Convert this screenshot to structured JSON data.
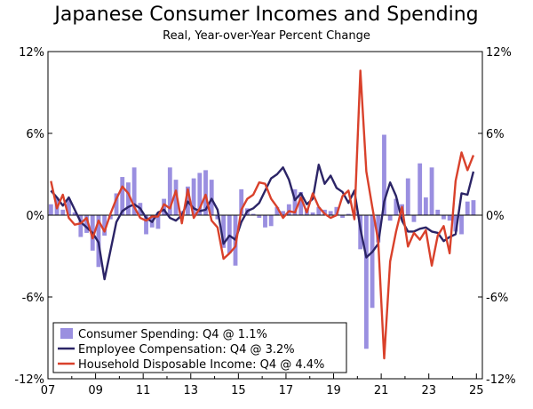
{
  "chart_data": {
    "type": "bar+line",
    "title": "Japanese Consumer Incomes and Spending",
    "subtitle": "Real, Year-over-Year Percent Change",
    "xlabel": "",
    "ylabel": "",
    "ylim": [
      -12,
      12
    ],
    "y_ticks": [
      "12%",
      "6%",
      "0%",
      "-6%",
      "-12%"
    ],
    "y_tick_values": [
      12,
      6,
      0,
      -6,
      -12
    ],
    "x_tick_labels": [
      "07",
      "09",
      "11",
      "13",
      "15",
      "17",
      "19",
      "21",
      "23",
      "25"
    ],
    "x_tick_values": [
      2007,
      2009,
      2011,
      2013,
      2015,
      2017,
      2019,
      2021,
      2023,
      2025
    ],
    "xlim": [
      2007,
      2025.25
    ],
    "grid": false,
    "legend_position": "bottom-left",
    "colors": {
      "bars": "#9a8fe0",
      "employee": "#2b2466",
      "household": "#d9412b"
    },
    "series": [
      {
        "name": "Consumer Spending: Q4 @ 1.1%",
        "type": "bar",
        "x": [
          2007.0,
          2007.25,
          2007.5,
          2007.75,
          2008.0,
          2008.25,
          2008.5,
          2008.75,
          2009.0,
          2009.25,
          2009.5,
          2009.75,
          2010.0,
          2010.25,
          2010.5,
          2010.75,
          2011.0,
          2011.25,
          2011.5,
          2011.75,
          2012.0,
          2012.25,
          2012.5,
          2012.75,
          2013.0,
          2013.25,
          2013.5,
          2013.75,
          2014.0,
          2014.25,
          2014.5,
          2014.75,
          2015.0,
          2015.25,
          2015.5,
          2015.75,
          2016.0,
          2016.25,
          2016.5,
          2016.75,
          2017.0,
          2017.25,
          2017.5,
          2017.75,
          2018.0,
          2018.25,
          2018.5,
          2018.75,
          2019.0,
          2019.25,
          2019.5,
          2019.75,
          2020.0,
          2020.25,
          2020.5,
          2020.75,
          2021.0,
          2021.25,
          2021.5,
          2021.75,
          2022.0,
          2022.25,
          2022.5,
          2022.75,
          2023.0,
          2023.25,
          2023.5,
          2023.75,
          2024.0,
          2024.25,
          2024.5,
          2024.75
        ],
        "values": [
          0.8,
          1.3,
          0.4,
          1.2,
          0.2,
          -1.6,
          -1.3,
          -2.6,
          -3.8,
          -1.5,
          -0.3,
          1.6,
          2.8,
          2.4,
          3.5,
          0.9,
          -1.4,
          -0.9,
          -1.0,
          1.2,
          3.5,
          2.6,
          0.3,
          2.1,
          2.7,
          3.1,
          3.3,
          2.6,
          -0.3,
          -2.4,
          -2.8,
          -3.7,
          1.9,
          0.5,
          0.1,
          -0.2,
          -0.9,
          -0.8,
          0.6,
          0.3,
          0.8,
          1.9,
          1.7,
          0.5,
          0.2,
          0.6,
          0.4,
          0.3,
          0.6,
          -0.2,
          0.1,
          0.2,
          -2.5,
          -9.8,
          -6.8,
          -2.0,
          5.9,
          -0.4,
          1.2,
          0.8,
          2.7,
          -0.5,
          3.8,
          1.3,
          3.5,
          0.4,
          -0.3,
          -0.4,
          -1.2,
          -1.4,
          1.0,
          1.1
        ]
      },
      {
        "name": "Employee Compensation: Q4 @ 3.2%",
        "type": "line",
        "x": [
          2007.0,
          2007.25,
          2007.5,
          2007.75,
          2008.0,
          2008.25,
          2008.5,
          2008.75,
          2009.0,
          2009.25,
          2009.5,
          2009.75,
          2010.0,
          2010.25,
          2010.5,
          2010.75,
          2011.0,
          2011.25,
          2011.5,
          2011.75,
          2012.0,
          2012.25,
          2012.5,
          2012.75,
          2013.0,
          2013.25,
          2013.5,
          2013.75,
          2014.0,
          2014.25,
          2014.5,
          2014.75,
          2015.0,
          2015.25,
          2015.5,
          2015.75,
          2016.0,
          2016.25,
          2016.5,
          2016.75,
          2017.0,
          2017.25,
          2017.5,
          2017.75,
          2018.0,
          2018.25,
          2018.5,
          2018.75,
          2019.0,
          2019.25,
          2019.5,
          2019.75,
          2020.0,
          2020.25,
          2020.5,
          2020.75,
          2021.0,
          2021.25,
          2021.5,
          2021.75,
          2022.0,
          2022.25,
          2022.5,
          2022.75,
          2023.0,
          2023.25,
          2023.5,
          2023.75,
          2024.0,
          2024.25,
          2024.5,
          2024.75
        ],
        "values": [
          1.8,
          1.3,
          0.7,
          1.3,
          0.4,
          -0.5,
          -0.9,
          -1.3,
          -2.0,
          -4.7,
          -2.6,
          -0.5,
          0.3,
          0.6,
          0.8,
          0.5,
          -0.2,
          -0.5,
          0.2,
          0.4,
          -0.2,
          -0.4,
          0.0,
          1.0,
          0.5,
          0.3,
          0.4,
          1.2,
          0.4,
          -2.1,
          -1.5,
          -1.8,
          -0.5,
          0.3,
          0.5,
          0.9,
          1.8,
          2.7,
          3.0,
          3.5,
          2.6,
          1.1,
          1.6,
          0.8,
          1.2,
          3.7,
          2.3,
          2.9,
          2.0,
          1.7,
          0.9,
          1.8,
          -1.0,
          -3.1,
          -2.7,
          -2.1,
          1.0,
          2.4,
          1.4,
          -0.4,
          -1.2,
          -1.2,
          -1.0,
          -0.9,
          -1.2,
          -1.3,
          -1.9,
          -1.6,
          -1.4,
          1.6,
          1.5,
          3.2
        ]
      },
      {
        "name": "Household Disposable Income: Q4 @ 4.4%",
        "type": "line",
        "x": [
          2007.0,
          2007.25,
          2007.5,
          2007.75,
          2008.0,
          2008.25,
          2008.5,
          2008.75,
          2009.0,
          2009.25,
          2009.5,
          2009.75,
          2010.0,
          2010.25,
          2010.5,
          2010.75,
          2011.0,
          2011.25,
          2011.5,
          2011.75,
          2012.0,
          2012.25,
          2012.5,
          2012.75,
          2013.0,
          2013.25,
          2013.5,
          2013.75,
          2014.0,
          2014.25,
          2014.5,
          2014.75,
          2015.0,
          2015.25,
          2015.5,
          2015.75,
          2016.0,
          2016.25,
          2016.5,
          2016.75,
          2017.0,
          2017.25,
          2017.5,
          2017.75,
          2018.0,
          2018.25,
          2018.5,
          2018.75,
          2019.0,
          2019.25,
          2019.5,
          2019.75,
          2020.0,
          2020.25,
          2020.5,
          2020.75,
          2021.0,
          2021.25,
          2021.5,
          2021.75,
          2022.0,
          2022.25,
          2022.5,
          2022.75,
          2023.0,
          2023.25,
          2023.5,
          2023.75,
          2024.0,
          2024.25,
          2024.5,
          2024.75
        ],
        "values": [
          2.5,
          0.5,
          1.5,
          -0.2,
          -0.7,
          -0.6,
          -0.2,
          -1.7,
          -0.4,
          -1.2,
          0.1,
          1.2,
          2.1,
          1.6,
          0.6,
          -0.2,
          -0.4,
          -0.1,
          -0.1,
          0.8,
          0.5,
          1.8,
          -0.6,
          1.9,
          -0.2,
          0.5,
          1.5,
          -0.4,
          -0.9,
          -3.2,
          -2.8,
          -2.3,
          0.4,
          1.2,
          1.5,
          2.4,
          2.3,
          1.2,
          0.6,
          -0.2,
          0.3,
          0.2,
          1.3,
          0.2,
          1.6,
          0.6,
          0.1,
          -0.2,
          0.0,
          1.4,
          1.8,
          -0.3,
          10.6,
          3.2,
          0.6,
          -1.9,
          -10.5,
          -3.4,
          -1.2,
          0.6,
          -2.3,
          -1.3,
          -1.8,
          -1.1,
          -3.7,
          -1.5,
          -0.8,
          -2.8,
          2.5,
          4.6,
          3.3,
          4.4
        ]
      }
    ]
  }
}
